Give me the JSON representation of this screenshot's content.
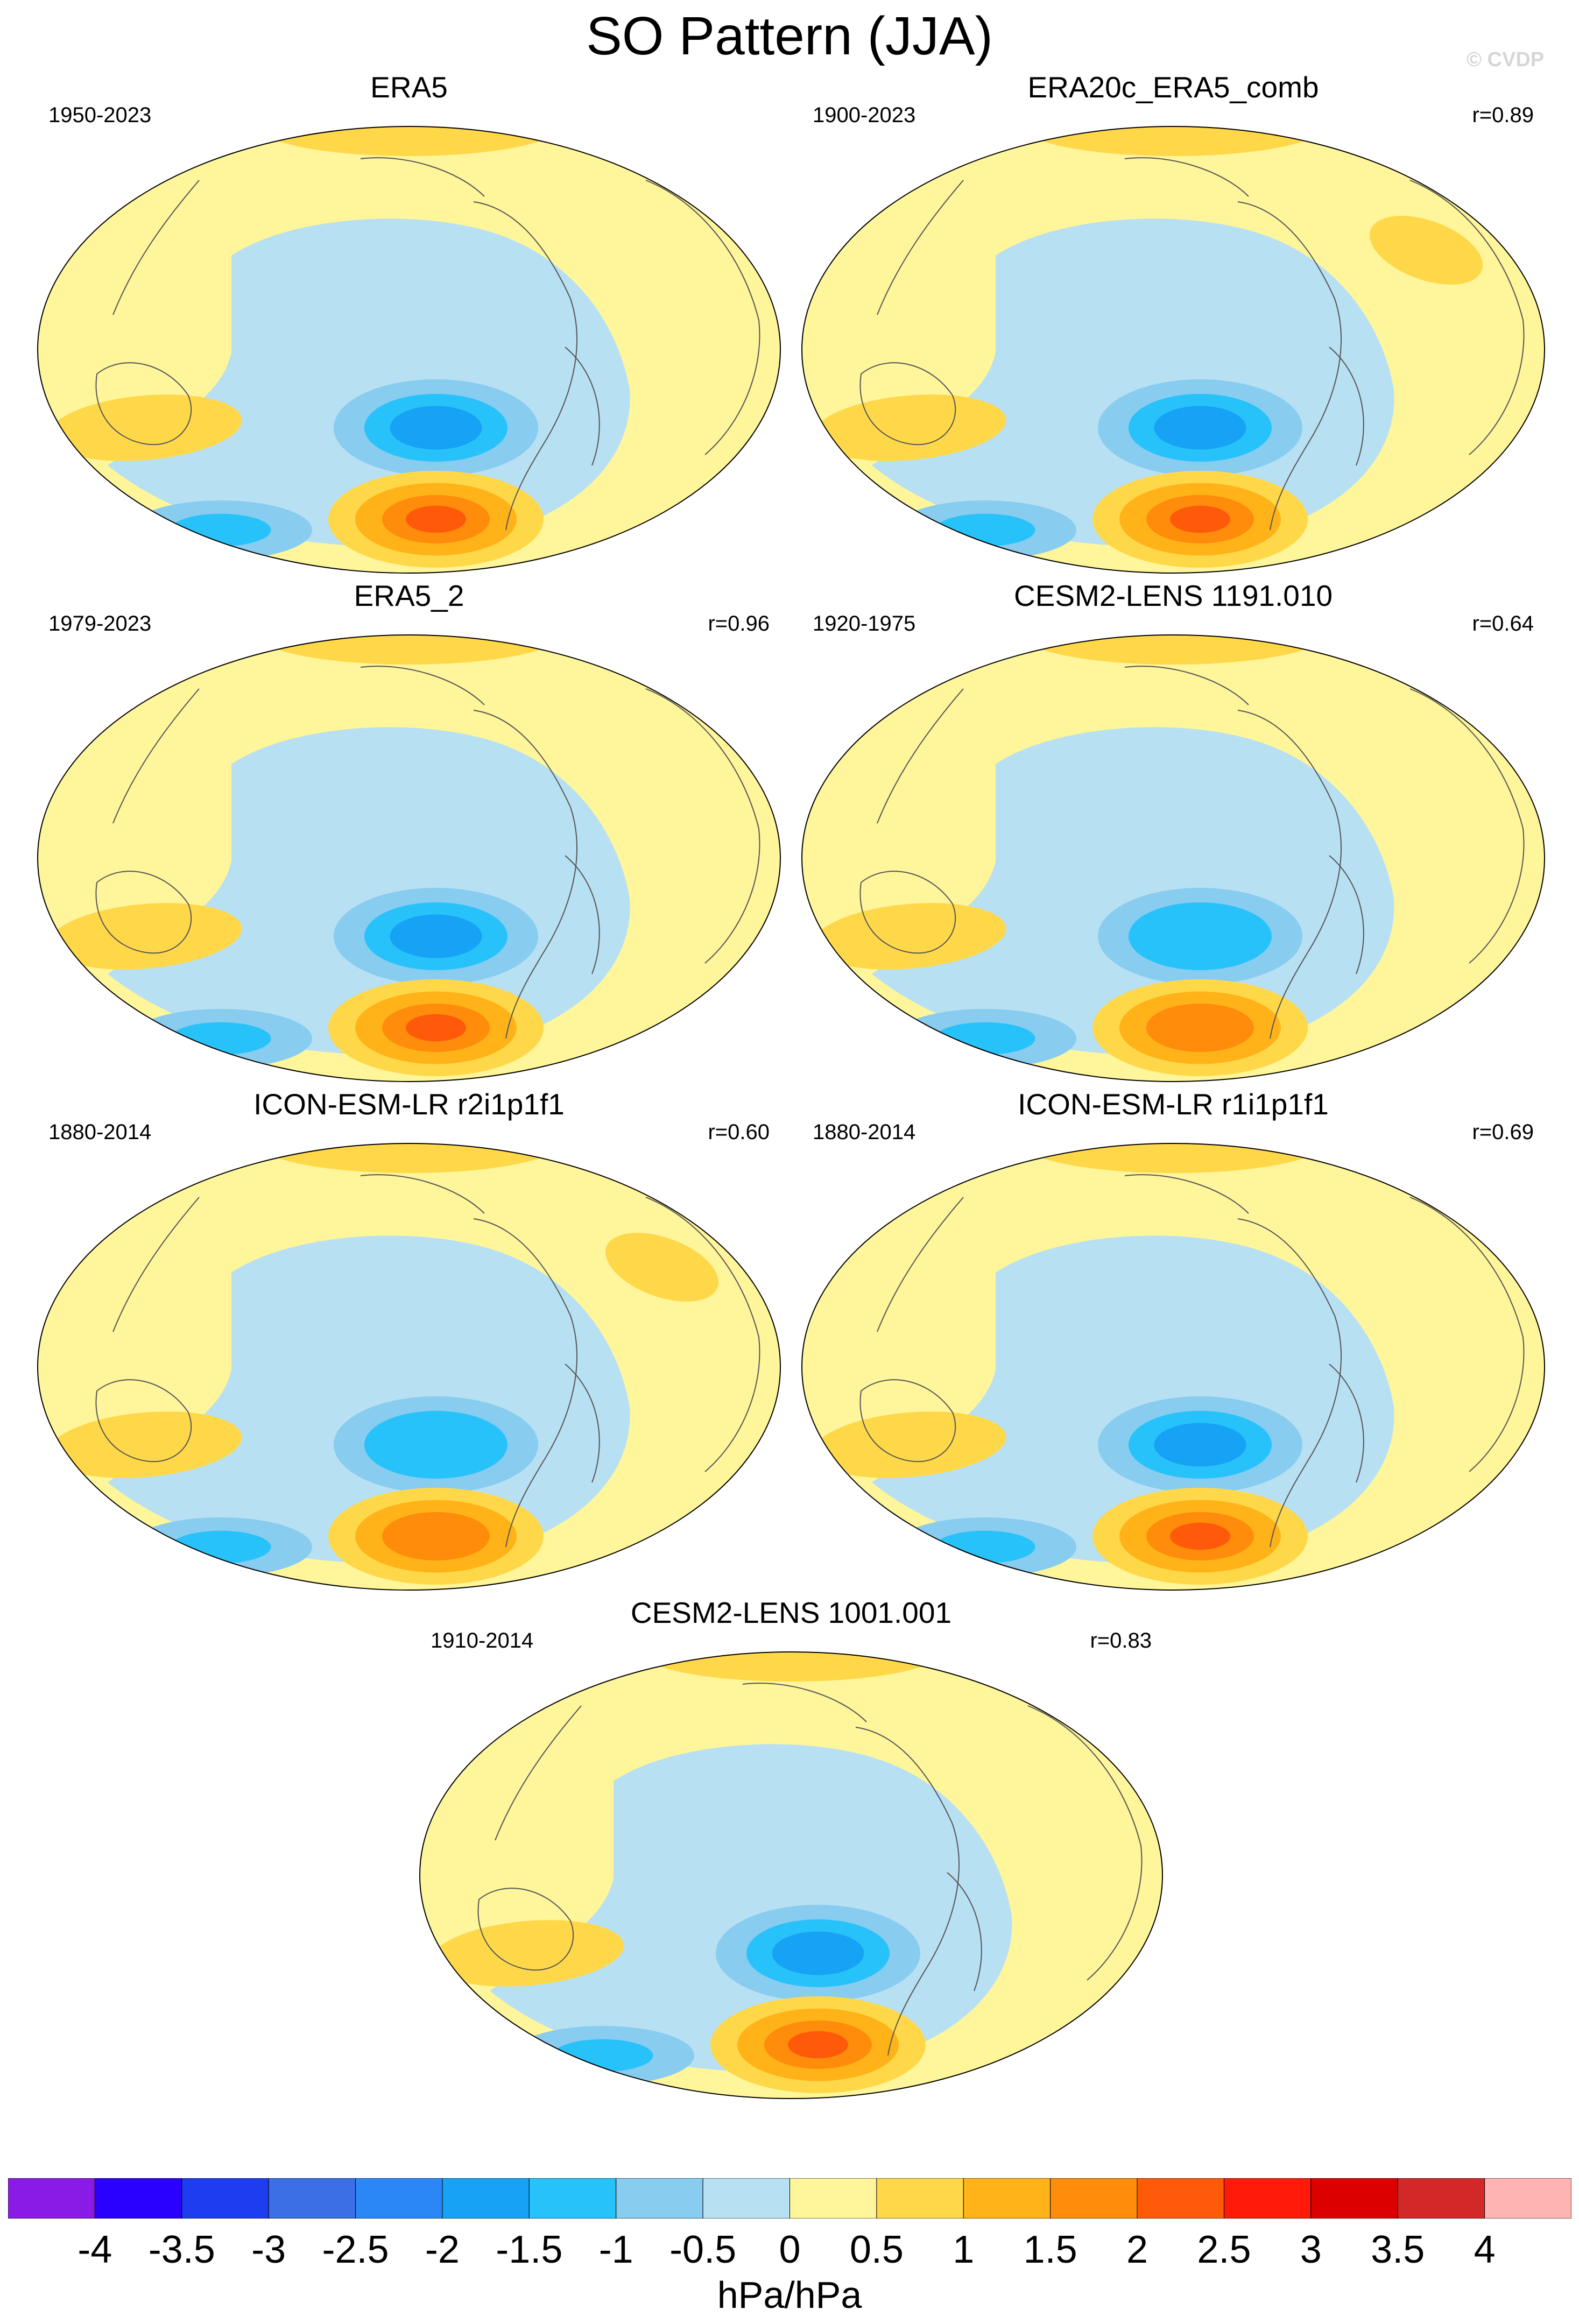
{
  "figure": {
    "title": "SO Pattern (JJA)",
    "watermark": "© CVDP"
  },
  "panels": [
    {
      "title": "ERA5",
      "years": "1950-2023",
      "corr": "",
      "intensity": 1.0,
      "warmshift": 0
    },
    {
      "title": "ERA20c_ERA5_comb",
      "years": "1900-2023",
      "corr": "r=0.89",
      "intensity": 1.15,
      "warmshift": 1
    },
    {
      "title": "ERA5_2",
      "years": "1979-2023",
      "corr": "r=0.96",
      "intensity": 1.05,
      "warmshift": 0
    },
    {
      "title": "CESM2-LENS 1191.010",
      "years": "1920-1975",
      "corr": "r=0.64",
      "intensity": 0.8,
      "warmshift": 2
    },
    {
      "title": "ICON-ESM-LR r2i1p1f1",
      "years": "1880-2014",
      "corr": "r=0.60",
      "intensity": 0.75,
      "warmshift": 3
    },
    {
      "title": "ICON-ESM-LR r1i1p1f1",
      "years": "1880-2014",
      "corr": "r=0.69",
      "intensity": 1.1,
      "warmshift": 4
    },
    {
      "title": "CESM2-LENS 1001.001",
      "years": "1910-2014",
      "corr": "r=0.83",
      "intensity": 0.9,
      "warmshift": 0
    }
  ],
  "colorbar": {
    "units": "hPa/hPa",
    "labels": [
      "-4",
      "-3.5",
      "-3",
      "-2.5",
      "-2",
      "-1.5",
      "-1",
      "-0.5",
      "0",
      "0.5",
      "1",
      "1.5",
      "2",
      "2.5",
      "3",
      "3.5",
      "4"
    ],
    "colors": [
      "#8a1ae6",
      "#2a00ff",
      "#1e3cf0",
      "#3c6ee6",
      "#2a87f5",
      "#16a2f5",
      "#28c2fa",
      "#88ccf0",
      "#b8e0f3",
      "#fff59b",
      "#ffd84a",
      "#ffb319",
      "#ff8c0a",
      "#ff5a0a",
      "#ff1a0a",
      "#dc0000",
      "#d22828",
      "#ffb4b4"
    ]
  }
}
